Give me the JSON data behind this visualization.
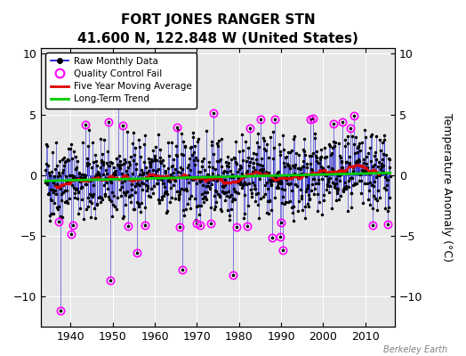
{
  "title": "FORT JONES RANGER STN",
  "subtitle": "41.600 N, 122.848 W (United States)",
  "ylabel": "Temperature Anomaly (°C)",
  "watermark": "Berkeley Earth",
  "xlim": [
    1933,
    2017
  ],
  "ylim": [
    -12.5,
    10.5
  ],
  "yticks": [
    -10,
    -5,
    0,
    5,
    10
  ],
  "xticks": [
    1940,
    1950,
    1960,
    1970,
    1980,
    1990,
    2000,
    2010
  ],
  "bg_color": "#e8e8e8",
  "seed": 42,
  "start_year": 1934,
  "end_year": 2015,
  "raw_color": "#0000cc",
  "qc_color": "#ff00ff",
  "moving_avg_color": "#dd0000",
  "trend_color": "#00cc00",
  "trend_slope": 0.008,
  "trend_intercept": -0.15,
  "outlier_indices": [
    42,
    186,
    390,
    534,
    678
  ],
  "outlier_values": [
    -11.2,
    -8.7,
    -7.8,
    -8.2,
    -6.2
  ],
  "qc_threshold": 3.8
}
